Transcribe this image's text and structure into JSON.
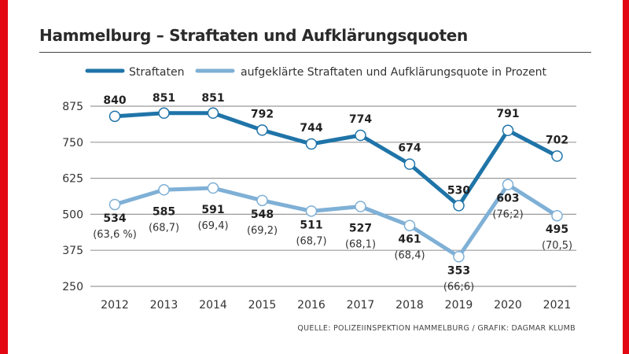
{
  "title": "Hammelburg – Straftaten und Aufklärungsquoten",
  "source": "QUELLE: POLIZEIINSPEKTION HAMMELBURG / GRAFIK: DAGMAR KLUMB",
  "colors": {
    "frame": "#e30613",
    "straftaten": "#1f74a8",
    "aufgeklaert": "#7fb0d6",
    "grid": "#9a9a9a",
    "text": "#222222"
  },
  "chart_data": {
    "type": "line",
    "title": "Hammelburg – Straftaten und Aufklärungsquoten",
    "xlabel": "",
    "ylabel": "",
    "x": [
      "2012",
      "2013",
      "2014",
      "2015",
      "2016",
      "2017",
      "2018",
      "2019",
      "2020",
      "2021"
    ],
    "yticks": [
      250,
      375,
      500,
      625,
      750,
      875
    ],
    "ylim": [
      250,
      875
    ],
    "grid": true,
    "legend_position": "top",
    "series": [
      {
        "name": "Straftaten",
        "values": [
          840,
          851,
          851,
          792,
          744,
          774,
          674,
          530,
          791,
          702
        ],
        "labels": [
          "840",
          "851",
          "851",
          "792",
          "744",
          "774",
          "674",
          "530",
          "791",
          "702"
        ]
      },
      {
        "name": "aufgeklärte Straftaten und Aufklärungsquote in Prozent",
        "values": [
          534,
          585,
          591,
          548,
          511,
          527,
          461,
          353,
          603,
          495
        ],
        "labels": [
          "534",
          "585",
          "591",
          "548",
          "511",
          "527",
          "461",
          "353",
          "603",
          "495"
        ],
        "quote_labels": [
          "(63,6 %)",
          "(68,7)",
          "(69,4)",
          "(69,2)",
          "(68,7)",
          "(68,1)",
          "(68,4)",
          "(66;6)",
          "(76;2)",
          "(70,5)"
        ],
        "quote_percent": [
          63.6,
          68.7,
          69.4,
          69.2,
          68.7,
          68.1,
          68.4,
          66.6,
          76.2,
          70.5
        ]
      }
    ]
  }
}
